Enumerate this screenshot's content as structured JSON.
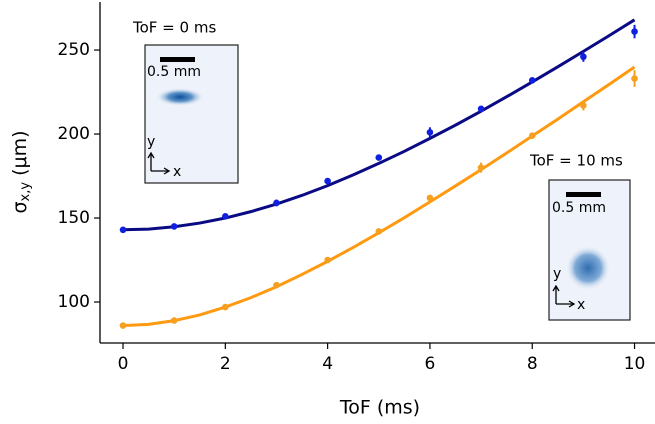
{
  "chart_data": {
    "type": "scatter",
    "x_label": "ToF (ms)",
    "y_label": {
      "symbol": "σ",
      "subscript": "x,y",
      "unit": "(μm)"
    },
    "xlim": [
      -0.45,
      10.4
    ],
    "ylim": [
      75.6,
      278.6
    ],
    "xticks": [
      0,
      2,
      4,
      6,
      8,
      10
    ],
    "yticks": [
      100,
      150,
      200,
      250
    ],
    "series": [
      {
        "kind": "points",
        "color": "#1020e0",
        "x": [
          0,
          1,
          2,
          3,
          4,
          5,
          6,
          7,
          8,
          9,
          10
        ],
        "values": [
          143,
          145,
          151,
          159,
          172,
          186,
          201,
          215,
          232,
          246,
          261
        ],
        "errors": [
          1,
          1,
          1,
          2,
          1,
          1,
          3,
          1,
          1,
          3,
          4
        ]
      },
      {
        "kind": "points",
        "color": "#f5a020",
        "x": [
          0,
          1,
          2,
          3,
          4,
          5,
          6,
          7,
          8,
          9,
          10
        ],
        "values": [
          86,
          89,
          97,
          110,
          125,
          142,
          162,
          180,
          199,
          217,
          233
        ],
        "errors": [
          1,
          1,
          1,
          1,
          1,
          1,
          1,
          3,
          1,
          3,
          5
        ]
      },
      {
        "kind": "fit",
        "color": "#0a0a85",
        "x": [
          0,
          0.5,
          1,
          1.5,
          2,
          2.5,
          3,
          3.5,
          4,
          4.5,
          5,
          5.5,
          6,
          6.5,
          7,
          7.5,
          8,
          8.5,
          9,
          9.5,
          10
        ],
        "values": [
          143,
          143.4,
          144.8,
          147.0,
          150.0,
          153.8,
          158.3,
          163.5,
          169.3,
          175.7,
          182.5,
          189.7,
          197.4,
          205.3,
          213.6,
          222.2,
          231.0,
          240.0,
          249.2,
          258.5,
          268.0
        ]
      },
      {
        "kind": "fit",
        "color": "#ff9a10",
        "x": [
          0,
          0.5,
          1,
          1.5,
          2,
          2.5,
          3,
          3.5,
          4,
          4.5,
          5,
          5.5,
          6,
          6.5,
          7,
          7.5,
          8,
          8.5,
          9,
          9.5,
          10
        ],
        "values": [
          86,
          86.7,
          88.9,
          92.3,
          97.0,
          102.6,
          109.1,
          116.4,
          124.2,
          132.5,
          141.2,
          150.2,
          159.6,
          169.1,
          178.8,
          188.7,
          198.8,
          208.9,
          219.2,
          229.5,
          239.9
        ]
      }
    ],
    "insets": [
      {
        "label": "ToF = 0 ms",
        "scale": "0.5 mm",
        "axis_y": "y",
        "axis_x": "x"
      },
      {
        "label": "ToF = 10 ms",
        "scale": "0.5 mm",
        "axis_y": "y",
        "axis_x": "x"
      }
    ]
  }
}
